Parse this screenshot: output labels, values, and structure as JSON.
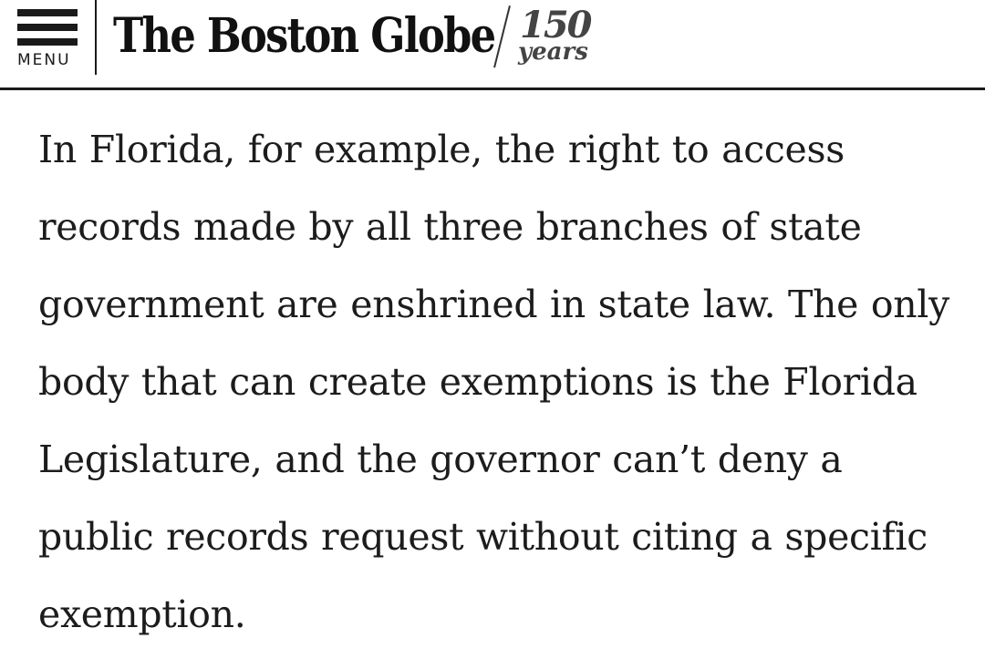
{
  "header": {
    "menu_label": "MENU",
    "logo_text": "The Boston Globe",
    "anniversary": {
      "number": "150",
      "word": "years"
    }
  },
  "article": {
    "paragraph": "In Florida, for example, the right to access records made by all three branches of state government are enshrined in state law. The only body that can create exemptions is the Florida Legislature, and the governor can’t deny a public records request without citing a specific exemption."
  },
  "colors": {
    "text": "#1c1c1c",
    "background": "#ffffff",
    "rule": "#1a1a1a"
  }
}
